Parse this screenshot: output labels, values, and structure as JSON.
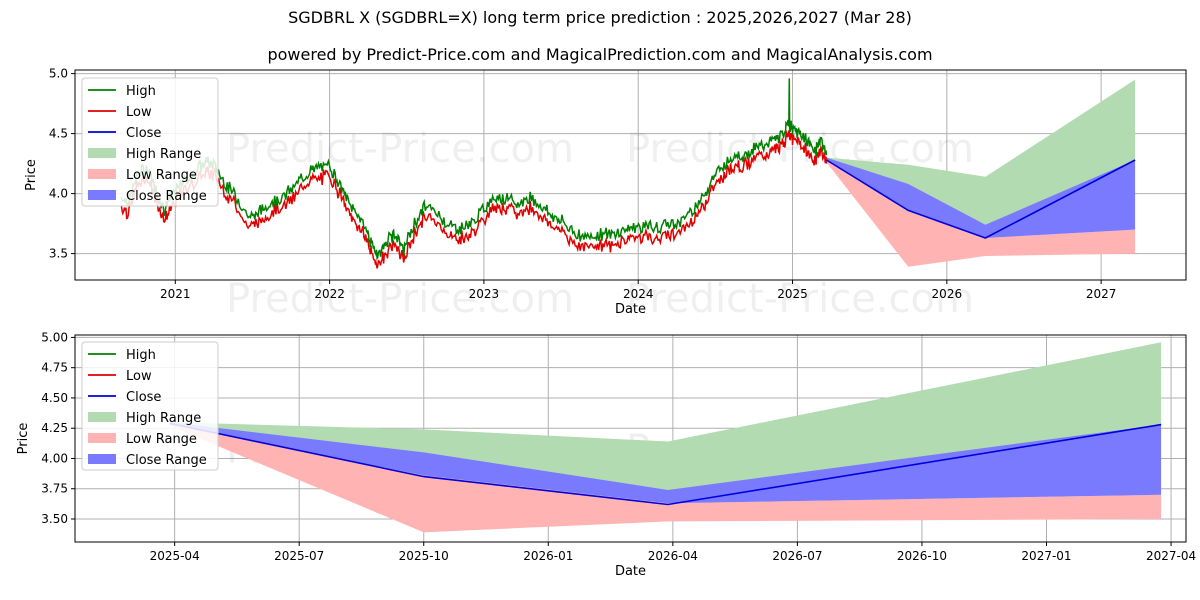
{
  "title": "SGDBRL X (SGDBRL=X) long term price prediction : 2025,2026,2027 (Mar 28)",
  "subtitle": "powered by Predict-Price.com and MagicalPrediction.com and MagicalAnalysis.com",
  "watermark": "Predict-Price.com",
  "colors": {
    "high": "#008000",
    "low": "#e00000",
    "close": "#0000dd",
    "high_range": "#b2dbb2",
    "low_range": "#ffb3b3",
    "close_range": "#7a7aff"
  },
  "legend": [
    "High",
    "Low",
    "Close",
    "High Range",
    "Low Range",
    "Close Range"
  ],
  "chart_data": [
    {
      "type": "line",
      "xlabel": "Date",
      "ylabel": "Price",
      "xlim": [
        2020.35,
        2027.55
      ],
      "ylim": [
        3.28,
        5.03
      ],
      "xticks": [
        2021,
        2022,
        2023,
        2024,
        2025,
        2026,
        2027
      ],
      "xtick_labels": [
        "2021",
        "2022",
        "2023",
        "2024",
        "2025",
        "2026",
        "2027"
      ],
      "yticks": [
        3.5,
        4.0,
        4.5,
        5.0
      ],
      "ytick_labels": [
        "3.5",
        "4.0",
        "4.5",
        "5.0"
      ],
      "history": {
        "name": "High / Low / Close",
        "x": [
          2020.65,
          2020.7,
          2020.75,
          2020.82,
          2020.88,
          2020.93,
          2020.97,
          2021.05,
          2021.12,
          2021.2,
          2021.26,
          2021.33,
          2021.4,
          2021.48,
          2021.55,
          2021.62,
          2021.7,
          2021.78,
          2021.85,
          2021.92,
          2022.0,
          2022.06,
          2022.12,
          2022.18,
          2022.24,
          2022.28,
          2022.32,
          2022.37,
          2022.42,
          2022.48,
          2022.55,
          2022.62,
          2022.7,
          2022.78,
          2022.85,
          2022.92,
          2023.0,
          2023.08,
          2023.15,
          2023.22,
          2023.3,
          2023.38,
          2023.45,
          2023.52,
          2023.6,
          2023.68,
          2023.75,
          2023.82,
          2023.9,
          2023.97,
          2024.05,
          2024.12,
          2024.2,
          2024.28,
          2024.35,
          2024.42,
          2024.48,
          2024.55,
          2024.62,
          2024.68,
          2024.75,
          2024.82,
          2024.88,
          2024.93,
          2024.97,
          2025.0,
          2025.05,
          2025.1,
          2025.15,
          2025.18,
          2025.22
        ],
        "close": [
          3.92,
          3.88,
          4.1,
          4.18,
          3.95,
          3.82,
          3.92,
          4.05,
          4.12,
          4.22,
          4.18,
          4.02,
          3.92,
          3.75,
          3.8,
          3.88,
          3.92,
          4.02,
          4.12,
          4.16,
          4.18,
          4.05,
          3.88,
          3.78,
          3.65,
          3.5,
          3.44,
          3.55,
          3.62,
          3.48,
          3.7,
          3.85,
          3.78,
          3.68,
          3.66,
          3.7,
          3.82,
          3.94,
          3.9,
          3.86,
          3.92,
          3.84,
          3.76,
          3.7,
          3.62,
          3.58,
          3.62,
          3.6,
          3.65,
          3.67,
          3.68,
          3.66,
          3.7,
          3.72,
          3.82,
          3.92,
          4.08,
          4.18,
          4.28,
          4.26,
          4.32,
          4.36,
          4.4,
          4.42,
          4.55,
          4.48,
          4.45,
          4.38,
          4.3,
          4.42,
          4.28
        ]
      },
      "series": [
        {
          "name": "High Range",
          "x": [
            2025.22,
            2025.75,
            2026.25,
            2027.22
          ],
          "upper": [
            4.3,
            4.24,
            4.14,
            4.95
          ],
          "lower": [
            4.28,
            3.86,
            3.63,
            4.28
          ]
        },
        {
          "name": "Low Range",
          "x": [
            2025.22,
            2025.75,
            2026.25,
            2027.22
          ],
          "upper": [
            4.28,
            3.86,
            3.63,
            3.7
          ],
          "lower": [
            4.26,
            3.39,
            3.48,
            3.5
          ]
        },
        {
          "name": "Close Range",
          "x": [
            2025.22,
            2025.75,
            2026.25,
            2027.22
          ],
          "upper": [
            4.3,
            4.08,
            3.74,
            4.28
          ],
          "lower": [
            4.28,
            3.86,
            3.63,
            3.7
          ]
        },
        {
          "name": "Close",
          "x": [
            2025.22,
            2025.75,
            2026.25,
            2027.22
          ],
          "values": [
            4.28,
            3.86,
            3.63,
            4.28
          ]
        }
      ],
      "annotations": {
        "spike": {
          "x": 2024.98,
          "high": 4.96
        }
      }
    },
    {
      "type": "line",
      "xlabel": "Date",
      "ylabel": "Price",
      "xlim": [
        2025.05,
        2027.28
      ],
      "ylim": [
        3.31,
        5.02
      ],
      "xticks": [
        2025.25,
        2025.5,
        2025.75,
        2026.0,
        2026.25,
        2026.5,
        2026.75,
        2027.0,
        2027.25
      ],
      "xtick_labels": [
        "2025-04",
        "2025-07",
        "2025-10",
        "2026-01",
        "2026-04",
        "2026-07",
        "2026-10",
        "2027-01",
        "2027-04"
      ],
      "yticks": [
        3.5,
        3.75,
        4.0,
        4.25,
        4.5,
        4.75,
        5.0
      ],
      "ytick_labels": [
        "3.50",
        "3.75",
        "4.00",
        "4.25",
        "4.50",
        "4.75",
        "5.00"
      ],
      "series": [
        {
          "name": "High Range",
          "x": [
            2025.24,
            2025.75,
            2026.24,
            2027.23
          ],
          "upper": [
            4.3,
            4.24,
            4.14,
            4.96
          ],
          "lower": [
            4.28,
            3.86,
            3.63,
            4.28
          ]
        },
        {
          "name": "Low Range",
          "x": [
            2025.24,
            2025.75,
            2026.24,
            2027.23
          ],
          "upper": [
            4.28,
            3.86,
            3.63,
            3.7
          ],
          "lower": [
            4.27,
            3.39,
            3.48,
            3.5
          ]
        },
        {
          "name": "Close Range",
          "x": [
            2025.24,
            2025.75,
            2026.24,
            2027.23
          ],
          "upper": [
            4.3,
            4.05,
            3.74,
            4.28
          ],
          "lower": [
            4.28,
            3.86,
            3.63,
            3.7
          ]
        },
        {
          "name": "Close",
          "x": [
            2025.24,
            2025.75,
            2026.24,
            2027.23
          ],
          "values": [
            4.29,
            3.85,
            3.62,
            4.28
          ]
        }
      ]
    }
  ]
}
